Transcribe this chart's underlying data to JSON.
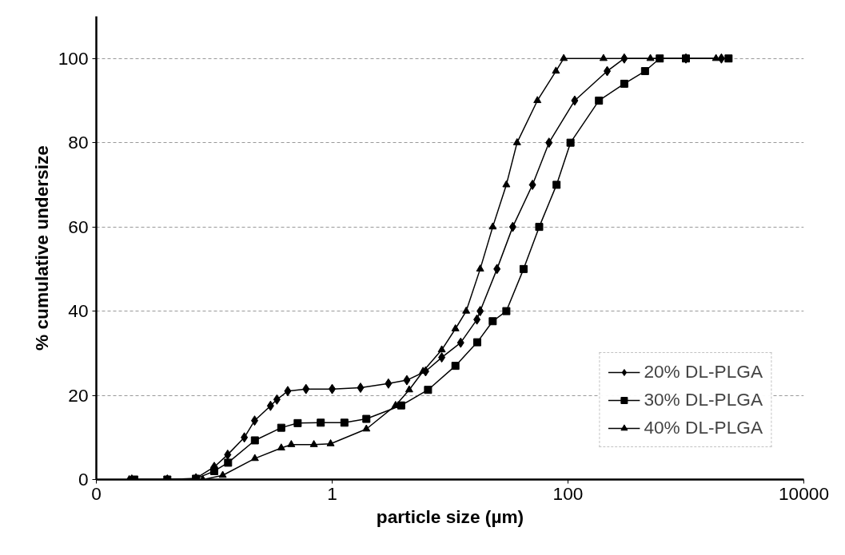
{
  "chart_data": {
    "type": "line",
    "xlabel": "particle size (µm)",
    "ylabel": "% cumulative undersize",
    "log": "x",
    "xlim": [
      0.01,
      10000
    ],
    "xticks": [
      {
        "value": 0.01,
        "label": "0"
      },
      1,
      100,
      10000
    ],
    "ylim": [
      0,
      110
    ],
    "yticks": [
      0,
      20,
      40,
      60,
      80,
      100
    ],
    "grid": "y",
    "legend": "bottom right",
    "line_style": "solid",
    "series": [
      {
        "name": "20% DL-PLGA",
        "color": "#000000",
        "marker": "diamond",
        "x": [
          0.02,
          0.04,
          0.07,
          0.1,
          0.13,
          0.18,
          0.22,
          0.3,
          0.34,
          0.42,
          0.6,
          1,
          1.74,
          3,
          4.3,
          6.2,
          8.5,
          12.3,
          16.9,
          18,
          25,
          34,
          50,
          69,
          114,
          215,
          300,
          1000,
          2000
        ],
        "values": [
          0,
          0,
          0.3,
          3,
          5.9,
          10,
          14,
          17.5,
          19,
          21,
          21.5,
          21.5,
          21.8,
          22.8,
          23.6,
          25.7,
          29,
          32.5,
          38,
          40,
          50,
          60,
          70,
          80,
          90,
          97,
          100,
          100,
          100
        ]
      },
      {
        "name": "30% DL-PLGA",
        "color": "#000000",
        "marker": "square",
        "x": [
          0.021,
          0.04,
          0.07,
          0.1,
          0.131,
          0.221,
          0.37,
          0.51,
          0.8,
          1.27,
          1.95,
          3.85,
          6.5,
          11.1,
          17,
          23,
          30,
          42,
          57,
          80,
          105,
          183,
          300,
          450,
          600,
          1000,
          2300
        ],
        "values": [
          0,
          0,
          0.2,
          2,
          4,
          9.3,
          12.3,
          13.4,
          13.5,
          13.5,
          14.4,
          17.6,
          21.3,
          27,
          32.6,
          37.6,
          40,
          50,
          60,
          70,
          80,
          90,
          94,
          97,
          100,
          100,
          100
        ]
      },
      {
        "name": "40% DL-PLGA",
        "color": "#000000",
        "marker": "triangle",
        "x": [
          0.019,
          0.04,
          0.08,
          0.118,
          0.221,
          0.37,
          0.45,
          0.7,
          0.97,
          1.95,
          3.45,
          4.5,
          5.9,
          8.5,
          11.1,
          13.7,
          18,
          23,
          30,
          37,
          55,
          79,
          92,
          200,
          500,
          1000,
          1800
        ],
        "values": [
          0,
          0,
          0,
          1,
          5,
          7.5,
          8.3,
          8.3,
          8.5,
          12,
          17.6,
          21.3,
          25.7,
          30.8,
          35.8,
          40,
          50,
          60,
          70,
          80,
          90,
          97,
          100,
          100,
          100,
          100,
          100
        ]
      }
    ]
  }
}
